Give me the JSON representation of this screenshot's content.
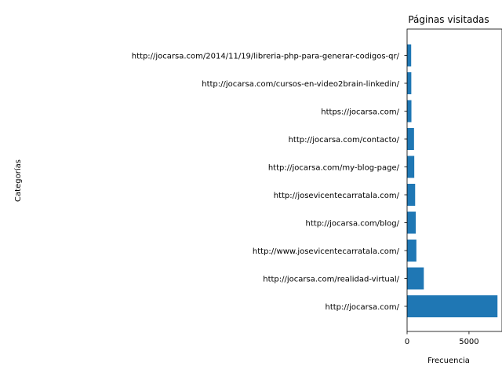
{
  "chart_data": {
    "type": "bar",
    "orientation": "horizontal",
    "title": "Páginas visitadas",
    "xlabel": "Frecuencia",
    "ylabel": "Categorías",
    "categories": [
      "http://jocarsa.com/",
      "http://jocarsa.com/realidad-virtual/",
      "http://www.josevicentecarratala.com/",
      "http://jocarsa.com/blog/",
      "http://josevicentecarratala.com/",
      "http://jocarsa.com/my-blog-page/",
      "http://jocarsa.com/contacto/",
      "https://jocarsa.com/",
      "http://jocarsa.com/cursos-en-video2brain-linkedin/",
      "http://jocarsa.com/2014/11/19/libreria-php-para-generar-codigos-qr/"
    ],
    "values": [
      7300,
      1350,
      750,
      700,
      650,
      580,
      560,
      350,
      340,
      330
    ],
    "xlim": [
      0,
      7665
    ],
    "xticks": [
      0,
      5000
    ],
    "grid": false,
    "colors": {
      "bar": "#1f77b4"
    }
  }
}
